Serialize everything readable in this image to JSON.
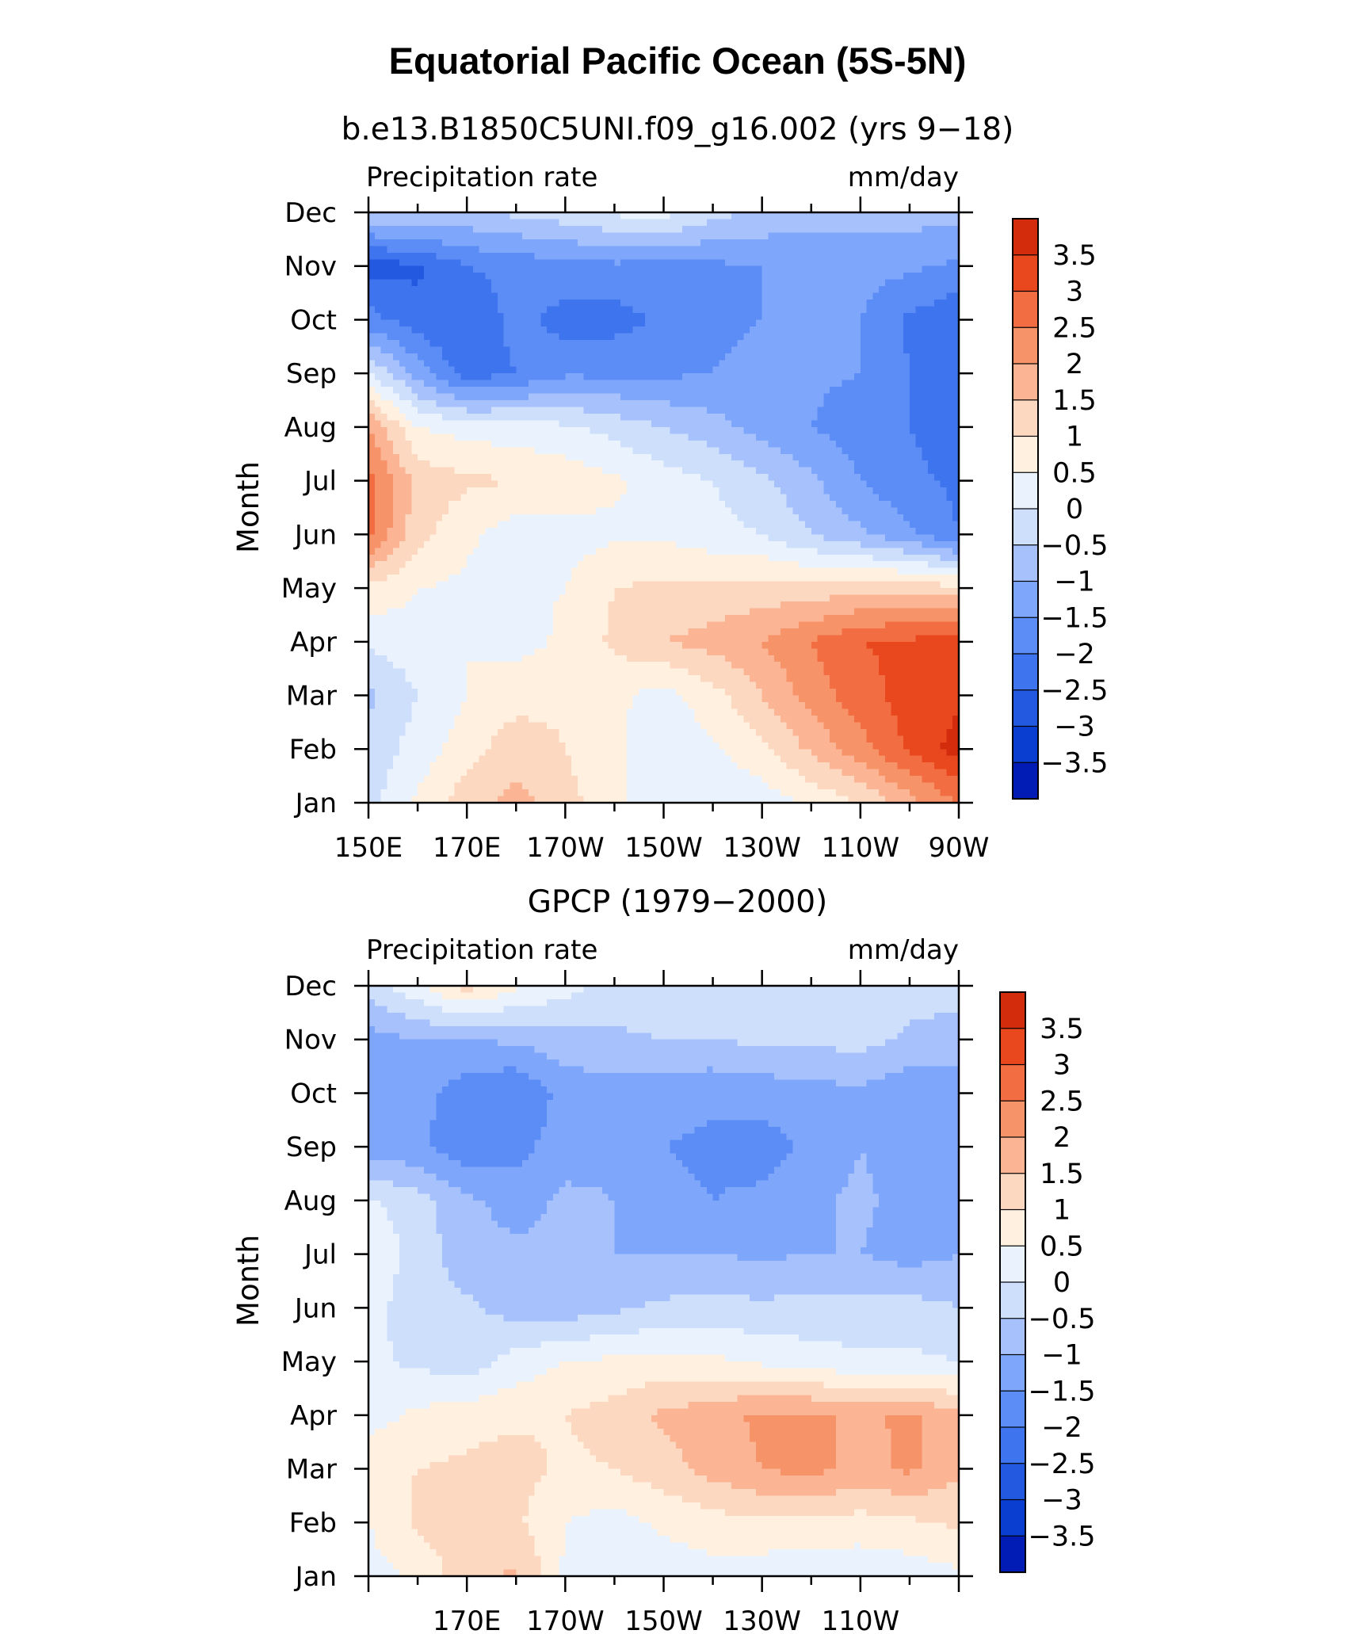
{
  "figure": {
    "title": "Equatorial Pacific Ocean (5S-5N)"
  },
  "colors": {
    "levels": [
      "#08008a",
      "#001cb4",
      "#0a3ed0",
      "#2358e0",
      "#3f74ef",
      "#5c8cf6",
      "#7ea6fb",
      "#a6c1fc",
      "#cddffb",
      "#eaf2fd",
      "#fff0e0",
      "#fdd8c0",
      "#fbb595",
      "#f79369",
      "#f26e42",
      "#e9481f",
      "#d22c0c",
      "#b01a05",
      "#8a0404"
    ]
  },
  "chart_data": [
    {
      "type": "heatmap",
      "title": "b.e13.B1850C5UNI.f09_g16.002 (yrs 9−18)",
      "left_label": "Precipitation rate",
      "right_label": "mm/day",
      "ylabel": "Month",
      "x_tick_labels": [
        "150E",
        "170E",
        "170W",
        "150W",
        "130W",
        "110W",
        "90W"
      ],
      "x_tick_values": [
        150,
        170,
        190,
        210,
        230,
        250,
        270
      ],
      "y_tick_labels": [
        "Jan",
        "Feb",
        "Mar",
        "Apr",
        "May",
        "Jun",
        "Jul",
        "Aug",
        "Sep",
        "Oct",
        "Nov",
        "Dec"
      ],
      "xlim": [
        150,
        270
      ],
      "ylim": [
        1,
        12
      ],
      "colorbar_labels": [
        "3.5",
        "3",
        "2.5",
        "2",
        "1.5",
        "1",
        "0.5",
        "0",
        "−0.5",
        "−1",
        "−1.5",
        "−2",
        "−2.5",
        "−3",
        "−3.5"
      ],
      "colorbar_levels": [
        -3.5,
        -3,
        -2.5,
        -2,
        -1.5,
        -1,
        -0.5,
        0,
        0.5,
        1,
        1.5,
        2,
        2.5,
        3,
        3.5
      ],
      "x": [
        150,
        160,
        170,
        180,
        190,
        200,
        210,
        220,
        230,
        240,
        250,
        260,
        270
      ],
      "y": [
        1,
        2,
        3,
        4,
        5,
        6,
        7,
        8,
        9,
        10,
        11,
        12
      ],
      "z": [
        [
          -0.2,
          0.6,
          1.3,
          1.7,
          1.2,
          0.6,
          0.2,
          0.1,
          0.2,
          0.6,
          1.0,
          1.8,
          2.5
        ],
        [
          -0.3,
          0.2,
          0.8,
          1.3,
          1.0,
          0.6,
          0.2,
          0.4,
          0.9,
          1.6,
          2.3,
          3.1,
          3.7
        ],
        [
          -0.6,
          0.0,
          0.5,
          0.8,
          0.9,
          0.6,
          0.3,
          0.8,
          1.5,
          2.2,
          2.8,
          3.2,
          3.4
        ],
        [
          0.1,
          0.3,
          0.5,
          0.3,
          0.6,
          1.1,
          1.5,
          1.7,
          2.0,
          2.5,
          3.0,
          3.1,
          3.2
        ],
        [
          0.9,
          0.5,
          0.4,
          0.4,
          0.5,
          1.0,
          1.1,
          1.1,
          1.2,
          1.2,
          1.3,
          1.3,
          1.1
        ],
        [
          2.6,
          1.2,
          0.6,
          0.2,
          0.3,
          0.4,
          0.4,
          0.2,
          0.0,
          -0.5,
          -0.9,
          -1.4,
          -2.0
        ],
        [
          2.7,
          1.3,
          1.1,
          1.0,
          0.8,
          0.6,
          0.2,
          0.0,
          -0.4,
          -0.9,
          -1.5,
          -1.9,
          -2.1
        ],
        [
          2.0,
          0.5,
          0.3,
          0.2,
          0.1,
          -0.2,
          -0.5,
          -0.8,
          -1.2,
          -1.5,
          -1.8,
          -2.0,
          -2.2
        ],
        [
          0.0,
          -1.2,
          -2.3,
          -2.0,
          -1.6,
          -1.6,
          -1.6,
          -1.5,
          -1.3,
          -1.4,
          -1.5,
          -2.0,
          -2.5
        ],
        [
          -1.8,
          -2.3,
          -2.5,
          -1.8,
          -2.2,
          -2.2,
          -1.9,
          -1.7,
          -1.5,
          -1.4,
          -1.5,
          -2.1,
          -2.4
        ],
        [
          -2.7,
          -2.6,
          -2.0,
          -1.8,
          -1.7,
          -1.6,
          -1.7,
          -1.6,
          -1.5,
          -1.4,
          -1.3,
          -1.4,
          -1.6
        ],
        [
          -0.6,
          -0.4,
          -0.6,
          -0.4,
          -0.2,
          0.1,
          0.2,
          -0.3,
          -0.6,
          -0.8,
          -0.8,
          -0.8,
          -0.8
        ]
      ]
    },
    {
      "type": "heatmap",
      "title": "GPCP (1979−2000)",
      "left_label": "Precipitation rate",
      "right_label": "mm/day",
      "ylabel": "Month",
      "x_tick_labels": [
        "170E",
        "170W",
        "150W",
        "130W",
        "110W"
      ],
      "x_tick_values": [
        170,
        190,
        210,
        230,
        250
      ],
      "y_tick_labels": [
        "Jan",
        "Feb",
        "Mar",
        "Apr",
        "May",
        "Jun",
        "Jul",
        "Aug",
        "Sep",
        "Oct",
        "Nov",
        "Dec"
      ],
      "xlim": [
        150,
        270
      ],
      "ylim": [
        1,
        12
      ],
      "colorbar_labels": [
        "3.5",
        "3",
        "2.5",
        "2",
        "1.5",
        "1",
        "0.5",
        "0",
        "−0.5",
        "−1",
        "−1.5",
        "−2",
        "−2.5",
        "−3",
        "−3.5"
      ],
      "colorbar_levels": [
        -3.5,
        -3,
        -2.5,
        -2,
        -1.5,
        -1,
        -0.5,
        0,
        0.5,
        1,
        1.5,
        2,
        2.5,
        3,
        3.5
      ],
      "x": [
        150,
        160,
        170,
        180,
        190,
        200,
        210,
        220,
        230,
        240,
        250,
        260,
        270
      ],
      "y": [
        1,
        2,
        3,
        4,
        5,
        6,
        7,
        8,
        9,
        10,
        11,
        12
      ],
      "z": [
        [
          0.3,
          0.6,
          1.3,
          1.6,
          0.4,
          0.2,
          0.2,
          0.3,
          0.2,
          0.1,
          0.1,
          0.2,
          0.4
        ],
        [
          0.5,
          1.1,
          1.3,
          1.1,
          0.5,
          0.3,
          0.6,
          0.8,
          0.9,
          0.9,
          0.8,
          0.9,
          1.1
        ],
        [
          0.8,
          1.0,
          1.1,
          1.2,
          0.9,
          1.0,
          1.3,
          1.7,
          2.0,
          2.2,
          1.8,
          2.1,
          1.6
        ],
        [
          0.3,
          0.6,
          0.8,
          0.9,
          1.0,
          1.2,
          1.6,
          1.8,
          2.1,
          2.1,
          1.9,
          2.1,
          1.6
        ],
        [
          0.1,
          -0.1,
          -0.3,
          0.2,
          0.5,
          0.6,
          0.7,
          0.6,
          0.4,
          0.2,
          0.1,
          0.1,
          0.0
        ],
        [
          0.2,
          -0.3,
          -0.4,
          -0.7,
          -0.8,
          -0.6,
          -0.4,
          -0.3,
          -0.4,
          -0.3,
          -0.3,
          -0.3,
          -0.5
        ],
        [
          0.4,
          -0.2,
          -0.8,
          -0.9,
          -0.9,
          -1.0,
          -1.0,
          -1.0,
          -1.1,
          -1.0,
          -1.0,
          -1.2,
          -1.0
        ],
        [
          0.1,
          -0.3,
          -0.9,
          -1.2,
          -0.9,
          -1.0,
          -1.4,
          -1.5,
          -1.4,
          -1.1,
          -0.9,
          -1.2,
          -1.1
        ],
        [
          -1.3,
          -1.4,
          -1.9,
          -1.7,
          -1.2,
          -1.1,
          -1.5,
          -1.6,
          -1.7,
          -1.4,
          -1.0,
          -1.3,
          -1.2
        ],
        [
          -1.1,
          -1.3,
          -1.8,
          -2.0,
          -1.3,
          -1.2,
          -1.3,
          -1.4,
          -1.3,
          -1.2,
          -1.1,
          -1.4,
          -1.3
        ],
        [
          -1.2,
          -1.0,
          -1.0,
          -0.9,
          -0.7,
          -0.6,
          -0.5,
          -0.5,
          -0.4,
          -0.4,
          -0.3,
          -0.6,
          -0.7
        ],
        [
          -0.3,
          0.4,
          1.2,
          0.6,
          0.2,
          -0.2,
          -0.2,
          -0.2,
          -0.3,
          -0.3,
          -0.3,
          -0.3,
          -0.3
        ]
      ]
    }
  ]
}
